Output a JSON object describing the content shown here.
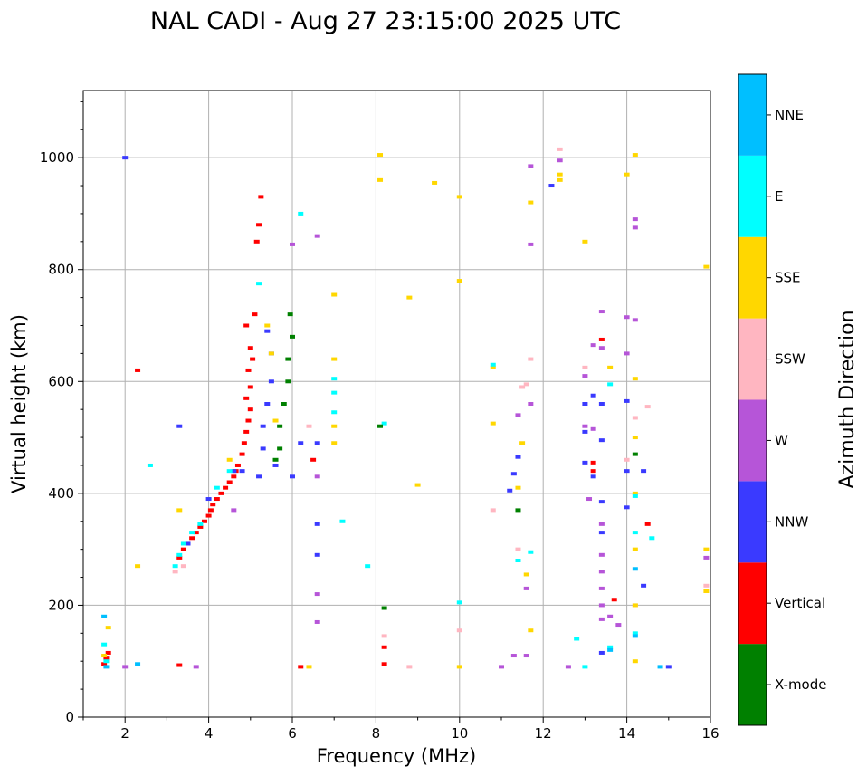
{
  "chart_data": {
    "type": "scatter",
    "title": "NAL CADI - Aug 27 23:15:00 2025 UTC",
    "xlabel": "Frequency (MHz)",
    "ylabel": "Virtual height (km)",
    "xlim": [
      1,
      16
    ],
    "ylim": [
      0,
      1120
    ],
    "xticks": [
      2,
      4,
      6,
      8,
      10,
      12,
      14,
      16
    ],
    "yticks": [
      0,
      200,
      400,
      600,
      800,
      1000
    ],
    "grid": true,
    "colorbar": {
      "title": "Azimuth Direction",
      "categories": [
        "X-mode",
        "Vertical",
        "NNW",
        "W",
        "SSW",
        "SSE",
        "E",
        "NNE"
      ],
      "colors": {
        "X-mode": "#008000",
        "Vertical": "#ff0000",
        "NNW": "#3a3aff",
        "W": "#b655d8",
        "SSW": "#ffb6c1",
        "SSE": "#ffd700",
        "E": "#00ffff",
        "NNE": "#00bfff"
      }
    },
    "series": [
      {
        "name": "Vertical",
        "points": [
          [
            1.5,
            95
          ],
          [
            1.55,
            105
          ],
          [
            1.6,
            115
          ],
          [
            2.3,
            620
          ],
          [
            3.3,
            93
          ],
          [
            3.3,
            285
          ],
          [
            3.4,
            300
          ],
          [
            3.5,
            310
          ],
          [
            3.6,
            320
          ],
          [
            3.7,
            330
          ],
          [
            3.8,
            340
          ],
          [
            3.9,
            350
          ],
          [
            4.0,
            360
          ],
          [
            4.05,
            370
          ],
          [
            4.1,
            380
          ],
          [
            4.2,
            390
          ],
          [
            4.3,
            400
          ],
          [
            4.4,
            410
          ],
          [
            4.5,
            420
          ],
          [
            4.6,
            430
          ],
          [
            4.65,
            440
          ],
          [
            4.7,
            450
          ],
          [
            4.8,
            470
          ],
          [
            4.85,
            490
          ],
          [
            4.9,
            510
          ],
          [
            4.95,
            530
          ],
          [
            5.0,
            550
          ],
          [
            4.9,
            570
          ],
          [
            5.0,
            590
          ],
          [
            4.95,
            620
          ],
          [
            5.05,
            640
          ],
          [
            5.0,
            660
          ],
          [
            4.9,
            700
          ],
          [
            5.1,
            720
          ],
          [
            5.15,
            850
          ],
          [
            5.2,
            880
          ],
          [
            5.25,
            930
          ],
          [
            6.2,
            90
          ],
          [
            6.5,
            460
          ],
          [
            8.2,
            95
          ],
          [
            8.2,
            125
          ],
          [
            13.2,
            440
          ],
          [
            13.2,
            455
          ],
          [
            13.4,
            675
          ],
          [
            13.7,
            210
          ],
          [
            14.5,
            345
          ]
        ]
      },
      {
        "name": "NNW",
        "points": [
          [
            2.0,
            1000
          ],
          [
            3.3,
            520
          ],
          [
            3.5,
            310
          ],
          [
            4.0,
            390
          ],
          [
            4.6,
            440
          ],
          [
            4.8,
            440
          ],
          [
            5.2,
            430
          ],
          [
            5.3,
            480
          ],
          [
            5.3,
            520
          ],
          [
            5.4,
            560
          ],
          [
            5.5,
            600
          ],
          [
            5.5,
            650
          ],
          [
            5.4,
            690
          ],
          [
            5.6,
            450
          ],
          [
            6.0,
            430
          ],
          [
            6.2,
            490
          ],
          [
            6.6,
            490
          ],
          [
            6.6,
            345
          ],
          [
            6.6,
            290
          ],
          [
            11.2,
            405
          ],
          [
            11.3,
            435
          ],
          [
            11.4,
            465
          ],
          [
            12.2,
            950
          ],
          [
            13.0,
            560
          ],
          [
            13.0,
            510
          ],
          [
            13.0,
            455
          ],
          [
            13.2,
            575
          ],
          [
            13.2,
            430
          ],
          [
            13.4,
            560
          ],
          [
            13.4,
            495
          ],
          [
            13.4,
            385
          ],
          [
            13.4,
            330
          ],
          [
            13.4,
            115
          ],
          [
            14.0,
            565
          ],
          [
            14.0,
            440
          ],
          [
            14.0,
            375
          ],
          [
            14.4,
            440
          ],
          [
            14.4,
            235
          ],
          [
            15.0,
            90
          ]
        ]
      },
      {
        "name": "W",
        "points": [
          [
            2.0,
            90
          ],
          [
            3.7,
            90
          ],
          [
            4.6,
            370
          ],
          [
            6.0,
            845
          ],
          [
            6.6,
            860
          ],
          [
            6.6,
            430
          ],
          [
            6.6,
            220
          ],
          [
            6.6,
            170
          ],
          [
            11.0,
            90
          ],
          [
            11.3,
            110
          ],
          [
            11.4,
            540
          ],
          [
            11.6,
            230
          ],
          [
            11.6,
            110
          ],
          [
            11.7,
            985
          ],
          [
            11.7,
            845
          ],
          [
            11.7,
            560
          ],
          [
            12.4,
            995
          ],
          [
            12.6,
            90
          ],
          [
            13.0,
            610
          ],
          [
            13.0,
            520
          ],
          [
            13.1,
            390
          ],
          [
            13.2,
            665
          ],
          [
            13.2,
            515
          ],
          [
            13.4,
            725
          ],
          [
            13.4,
            660
          ],
          [
            13.4,
            345
          ],
          [
            13.4,
            290
          ],
          [
            13.4,
            260
          ],
          [
            13.4,
            230
          ],
          [
            13.4,
            200
          ],
          [
            13.4,
            175
          ],
          [
            13.6,
            180
          ],
          [
            13.8,
            165
          ],
          [
            14.0,
            715
          ],
          [
            14.0,
            650
          ],
          [
            14.2,
            890
          ],
          [
            14.2,
            875
          ],
          [
            14.2,
            710
          ],
          [
            15.9,
            285
          ]
        ]
      },
      {
        "name": "SSW",
        "points": [
          [
            3.2,
            260
          ],
          [
            3.4,
            270
          ],
          [
            6.4,
            520
          ],
          [
            8.2,
            145
          ],
          [
            8.8,
            90
          ],
          [
            10.0,
            155
          ],
          [
            10.8,
            370
          ],
          [
            11.4,
            300
          ],
          [
            11.5,
            590
          ],
          [
            11.6,
            595
          ],
          [
            11.7,
            640
          ],
          [
            12.4,
            1015
          ],
          [
            13.0,
            625
          ],
          [
            14.0,
            460
          ],
          [
            14.2,
            535
          ],
          [
            14.2,
            200
          ],
          [
            14.5,
            555
          ],
          [
            15.9,
            235
          ]
        ]
      },
      {
        "name": "SSE",
        "points": [
          [
            1.5,
            110
          ],
          [
            1.6,
            160
          ],
          [
            2.3,
            270
          ],
          [
            3.3,
            370
          ],
          [
            4.5,
            460
          ],
          [
            5.4,
            700
          ],
          [
            5.5,
            650
          ],
          [
            5.6,
            530
          ],
          [
            6.4,
            90
          ],
          [
            7.0,
            755
          ],
          [
            7.0,
            640
          ],
          [
            7.0,
            520
          ],
          [
            7.0,
            490
          ],
          [
            8.1,
            1005
          ],
          [
            8.1,
            960
          ],
          [
            8.8,
            750
          ],
          [
            9.0,
            415
          ],
          [
            9.4,
            955
          ],
          [
            10.0,
            930
          ],
          [
            10.0,
            780
          ],
          [
            10.0,
            90
          ],
          [
            10.8,
            525
          ],
          [
            10.8,
            625
          ],
          [
            11.4,
            410
          ],
          [
            11.5,
            490
          ],
          [
            11.6,
            255
          ],
          [
            11.7,
            155
          ],
          [
            11.7,
            920
          ],
          [
            12.4,
            970
          ],
          [
            12.4,
            960
          ],
          [
            13.0,
            850
          ],
          [
            13.6,
            625
          ],
          [
            14.0,
            970
          ],
          [
            14.2,
            1005
          ],
          [
            14.2,
            605
          ],
          [
            14.2,
            500
          ],
          [
            14.2,
            400
          ],
          [
            14.2,
            300
          ],
          [
            14.2,
            200
          ],
          [
            14.2,
            100
          ],
          [
            15.9,
            805
          ],
          [
            15.9,
            300
          ],
          [
            15.9,
            225
          ]
        ]
      },
      {
        "name": "E",
        "points": [
          [
            1.5,
            130
          ],
          [
            1.55,
            100
          ],
          [
            2.6,
            450
          ],
          [
            3.2,
            270
          ],
          [
            3.3,
            290
          ],
          [
            3.4,
            310
          ],
          [
            3.6,
            330
          ],
          [
            3.8,
            345
          ],
          [
            4.2,
            410
          ],
          [
            4.5,
            440
          ],
          [
            5.2,
            775
          ],
          [
            6.2,
            900
          ],
          [
            7.0,
            605
          ],
          [
            7.0,
            580
          ],
          [
            7.0,
            545
          ],
          [
            7.2,
            350
          ],
          [
            7.8,
            270
          ],
          [
            8.2,
            525
          ],
          [
            10.0,
            205
          ],
          [
            10.8,
            630
          ],
          [
            11.4,
            280
          ],
          [
            11.7,
            295
          ],
          [
            12.8,
            140
          ],
          [
            13.0,
            90
          ],
          [
            13.6,
            595
          ],
          [
            13.6,
            125
          ],
          [
            14.2,
            395
          ],
          [
            14.2,
            330
          ],
          [
            14.2,
            150
          ],
          [
            14.6,
            320
          ]
        ]
      },
      {
        "name": "NNE",
        "points": [
          [
            1.5,
            180
          ],
          [
            1.55,
            90
          ],
          [
            2.3,
            95
          ],
          [
            13.6,
            120
          ],
          [
            14.2,
            265
          ],
          [
            14.2,
            145
          ],
          [
            14.8,
            90
          ]
        ]
      },
      {
        "name": "X-mode",
        "points": [
          [
            5.6,
            460
          ],
          [
            5.7,
            480
          ],
          [
            5.7,
            520
          ],
          [
            5.8,
            560
          ],
          [
            5.9,
            600
          ],
          [
            5.9,
            640
          ],
          [
            6.0,
            680
          ],
          [
            5.95,
            720
          ],
          [
            8.1,
            520
          ],
          [
            8.2,
            195
          ],
          [
            11.4,
            370
          ],
          [
            14.2,
            470
          ]
        ]
      }
    ]
  }
}
